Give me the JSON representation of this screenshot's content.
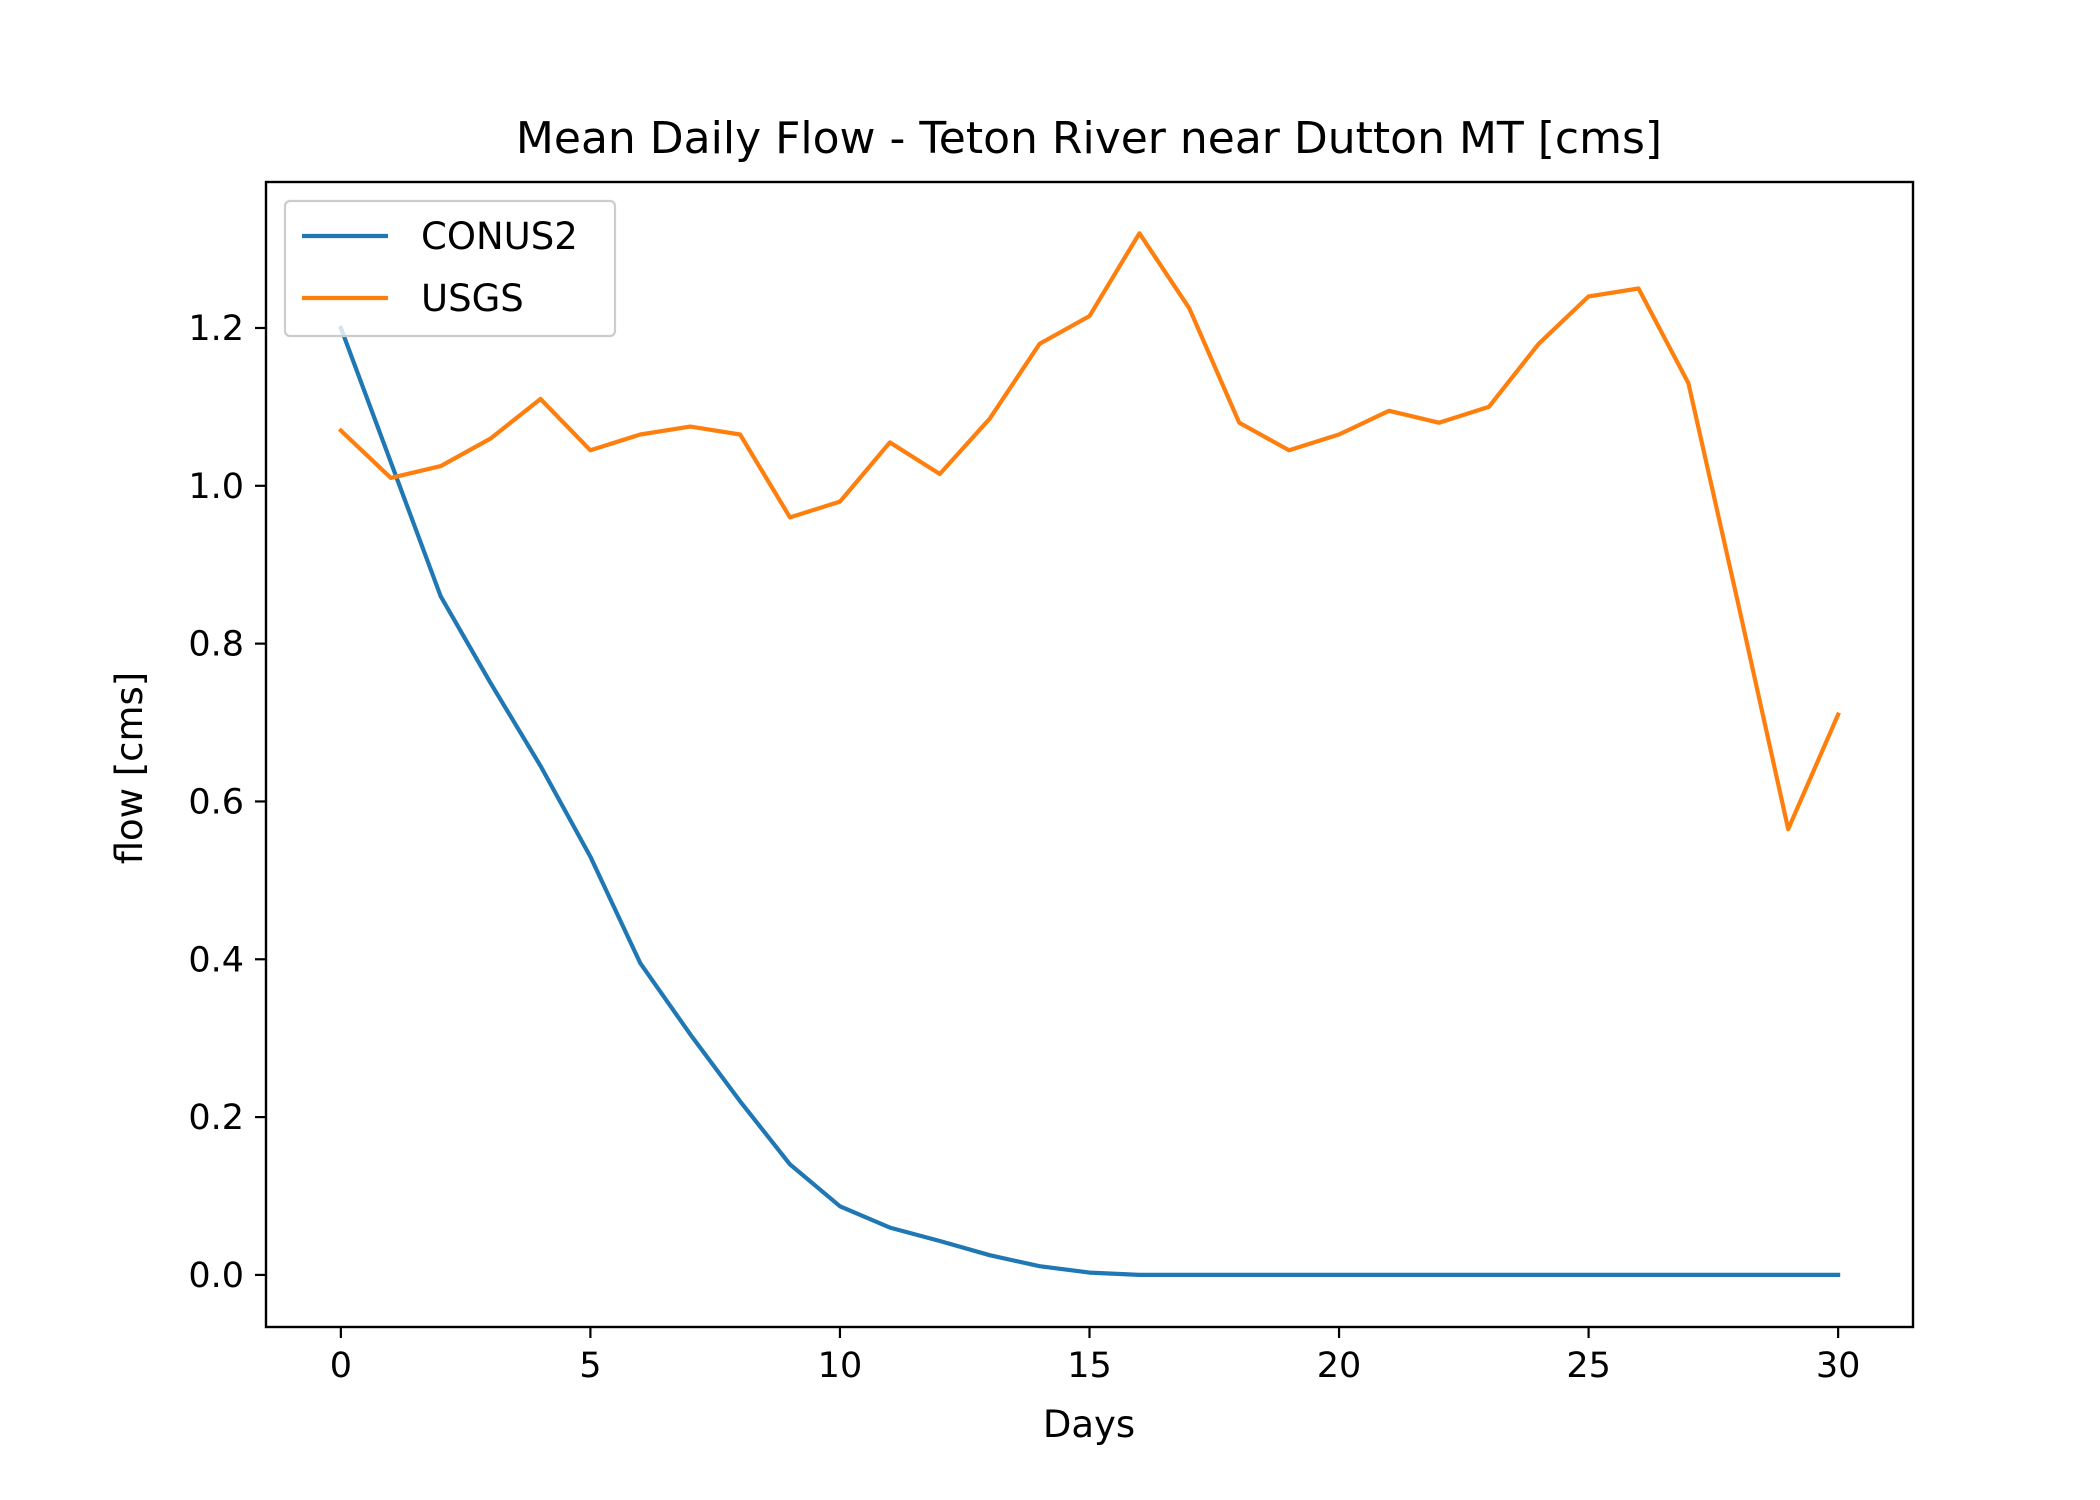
{
  "chart_data": {
    "type": "line",
    "title": "Mean Daily Flow - Teton River near Dutton MT [cms]",
    "xlabel": "Days",
    "ylabel": "flow [cms]",
    "xlim": [
      -1.5,
      31.5
    ],
    "ylim": [
      -0.066,
      1.385
    ],
    "xticks": [
      0,
      5,
      10,
      15,
      20,
      25,
      30
    ],
    "yticks": [
      0.0,
      0.2,
      0.4,
      0.6,
      0.8,
      1.0,
      1.2
    ],
    "ytick_labels": [
      "0.0",
      "0.2",
      "0.4",
      "0.6",
      "0.8",
      "1.0",
      "1.2"
    ],
    "grid": false,
    "legend_position": "upper-left",
    "x": [
      0,
      1,
      2,
      3,
      4,
      5,
      6,
      7,
      8,
      9,
      10,
      11,
      12,
      13,
      14,
      15,
      16,
      17,
      18,
      19,
      20,
      21,
      22,
      23,
      24,
      25,
      26,
      27,
      28,
      29,
      30
    ],
    "series": [
      {
        "name": "CONUS2",
        "color": "#1f77b4",
        "values": [
          1.2,
          1.03,
          0.86,
          0.75,
          0.645,
          0.53,
          0.395,
          0.305,
          0.22,
          0.14,
          0.087,
          0.06,
          0.043,
          0.025,
          0.011,
          0.003,
          0.0,
          0.0,
          0.0,
          0.0,
          0.0,
          0.0,
          0.0,
          0.0,
          0.0,
          0.0,
          0.0,
          0.0,
          0.0,
          0.0,
          0.0
        ]
      },
      {
        "name": "USGS",
        "color": "#ff7f0e",
        "values": [
          1.07,
          1.01,
          1.025,
          1.06,
          1.11,
          1.045,
          1.065,
          1.075,
          1.065,
          0.96,
          0.98,
          1.055,
          1.015,
          1.085,
          1.18,
          1.215,
          1.32,
          1.225,
          1.08,
          1.045,
          1.065,
          1.095,
          1.08,
          1.1,
          1.18,
          1.24,
          1.25,
          1.13,
          0.85,
          0.565,
          0.71
        ]
      }
    ]
  }
}
